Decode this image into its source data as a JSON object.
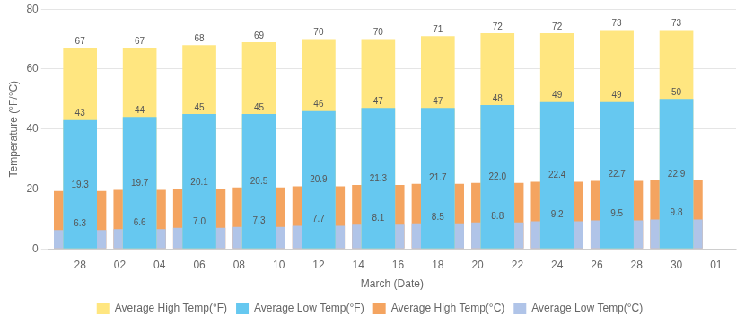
{
  "chart_data": {
    "type": "bar",
    "categories": [
      "28",
      null,
      "02",
      null,
      "04",
      null,
      "06",
      null,
      "08",
      null,
      "10",
      null,
      "12",
      null,
      "14",
      null,
      "16",
      null,
      "18",
      null,
      "20",
      null,
      "22",
      null,
      "24",
      null,
      "26",
      null,
      "28",
      null,
      "30",
      null,
      "01"
    ],
    "series": [
      {
        "name": "Average High Temp(°F)",
        "color": "#FFE680",
        "values": [
          67,
          null,
          null,
          67,
          null,
          null,
          68,
          null,
          null,
          69,
          null,
          null,
          70,
          null,
          null,
          70,
          null,
          null,
          71,
          null,
          null,
          72,
          null,
          null,
          72,
          null,
          null,
          73,
          null,
          null,
          73,
          null,
          null
        ]
      },
      {
        "name": "Average Low Temp(°F)",
        "color": "#66C8F0",
        "values": [
          43,
          null,
          null,
          44,
          null,
          null,
          45,
          null,
          null,
          45,
          null,
          null,
          46,
          null,
          null,
          47,
          null,
          null,
          47,
          null,
          null,
          48,
          null,
          null,
          49,
          null,
          null,
          49,
          null,
          null,
          50,
          null,
          null
        ]
      },
      {
        "name": "Average High Temp(°C)",
        "color": "#F4A460",
        "values": [
          19.3,
          null,
          null,
          19.7,
          null,
          null,
          20.1,
          null,
          null,
          20.5,
          null,
          null,
          20.9,
          null,
          null,
          21.3,
          null,
          null,
          21.7,
          null,
          null,
          22.0,
          null,
          null,
          22.4,
          null,
          null,
          22.7,
          null,
          null,
          22.9,
          null,
          null
        ],
        "value_labels": [
          "19.3",
          null,
          null,
          "19.7",
          null,
          null,
          "20.1",
          null,
          null,
          "20.5",
          null,
          null,
          "20.9",
          null,
          null,
          "21.3",
          null,
          null,
          "21.7",
          null,
          null,
          "22.0",
          null,
          null,
          "22.4",
          null,
          null,
          "22.7",
          null,
          null,
          "22.9",
          null,
          null
        ]
      },
      {
        "name": "Average Low Temp(°C)",
        "color": "#B0C4E8",
        "values": [
          6.3,
          null,
          null,
          6.6,
          null,
          null,
          7.0,
          null,
          null,
          7.3,
          null,
          null,
          7.7,
          null,
          null,
          8.1,
          null,
          null,
          8.5,
          null,
          null,
          8.8,
          null,
          null,
          9.2,
          null,
          null,
          9.5,
          null,
          null,
          9.8,
          null,
          null
        ],
        "value_labels": [
          "6.3",
          null,
          null,
          "6.6",
          null,
          null,
          "7.0",
          null,
          null,
          "7.3",
          null,
          null,
          "7.7",
          null,
          null,
          "8.1",
          null,
          null,
          "8.5",
          null,
          null,
          "8.8",
          null,
          null,
          "9.2",
          null,
          null,
          "9.5",
          null,
          null,
          "9.8",
          null,
          null
        ]
      }
    ],
    "xlabel": "March (Date)",
    "ylabel": "Temperature (°F/°C)",
    "ylim": [
      0,
      80
    ],
    "yticks": [
      0,
      20,
      40,
      60,
      80
    ],
    "grid": true,
    "legend": "bottom",
    "data_labels": true
  }
}
